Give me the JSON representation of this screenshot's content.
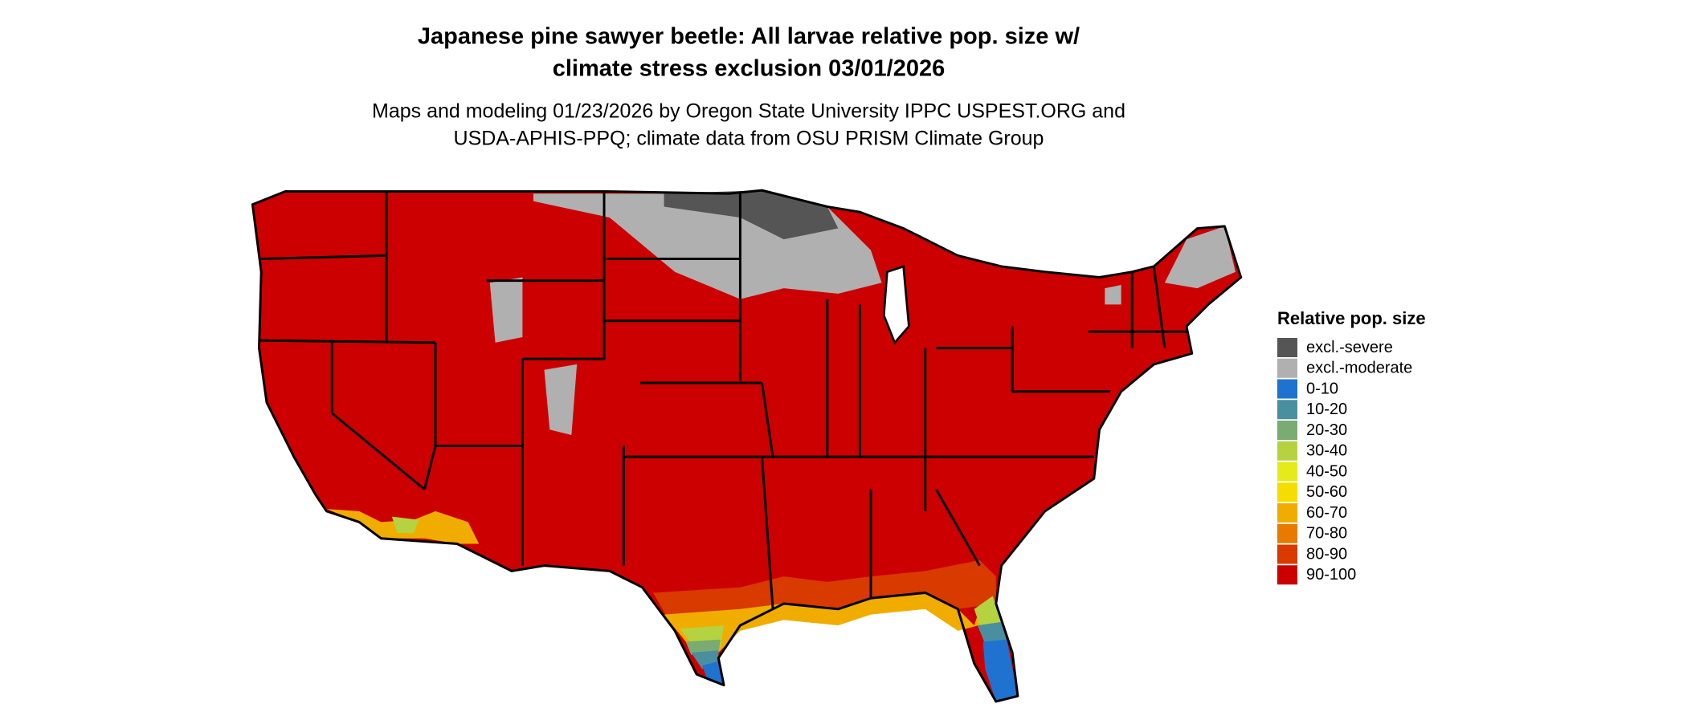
{
  "title_lines": [
    "Japanese pine sawyer beetle: All larvae relative pop. size w/",
    "climate stress exclusion 03/01/2026"
  ],
  "subtitle_lines": [
    "Maps and modeling 01/23/2026 by Oregon State University IPPC USPEST.ORG and",
    "USDA-APHIS-PPQ; climate data from OSU PRISM Climate Group"
  ],
  "legend": {
    "title": "Relative pop. size",
    "items": [
      {
        "label": "excl.-severe",
        "color": "#555555"
      },
      {
        "label": "excl.-moderate",
        "color": "#b0b0b0"
      },
      {
        "label": "0-10",
        "color": "#1f72d0"
      },
      {
        "label": "10-20",
        "color": "#4a8fa0"
      },
      {
        "label": "20-30",
        "color": "#7aab72"
      },
      {
        "label": "30-40",
        "color": "#b5d340"
      },
      {
        "label": "40-50",
        "color": "#e5eb1a"
      },
      {
        "label": "50-60",
        "color": "#f7dc00"
      },
      {
        "label": "60-70",
        "color": "#f0ad00"
      },
      {
        "label": "70-80",
        "color": "#e87a00"
      },
      {
        "label": "80-90",
        "color": "#d83a00"
      },
      {
        "label": "90-100",
        "color": "#cc0000"
      }
    ]
  }
}
